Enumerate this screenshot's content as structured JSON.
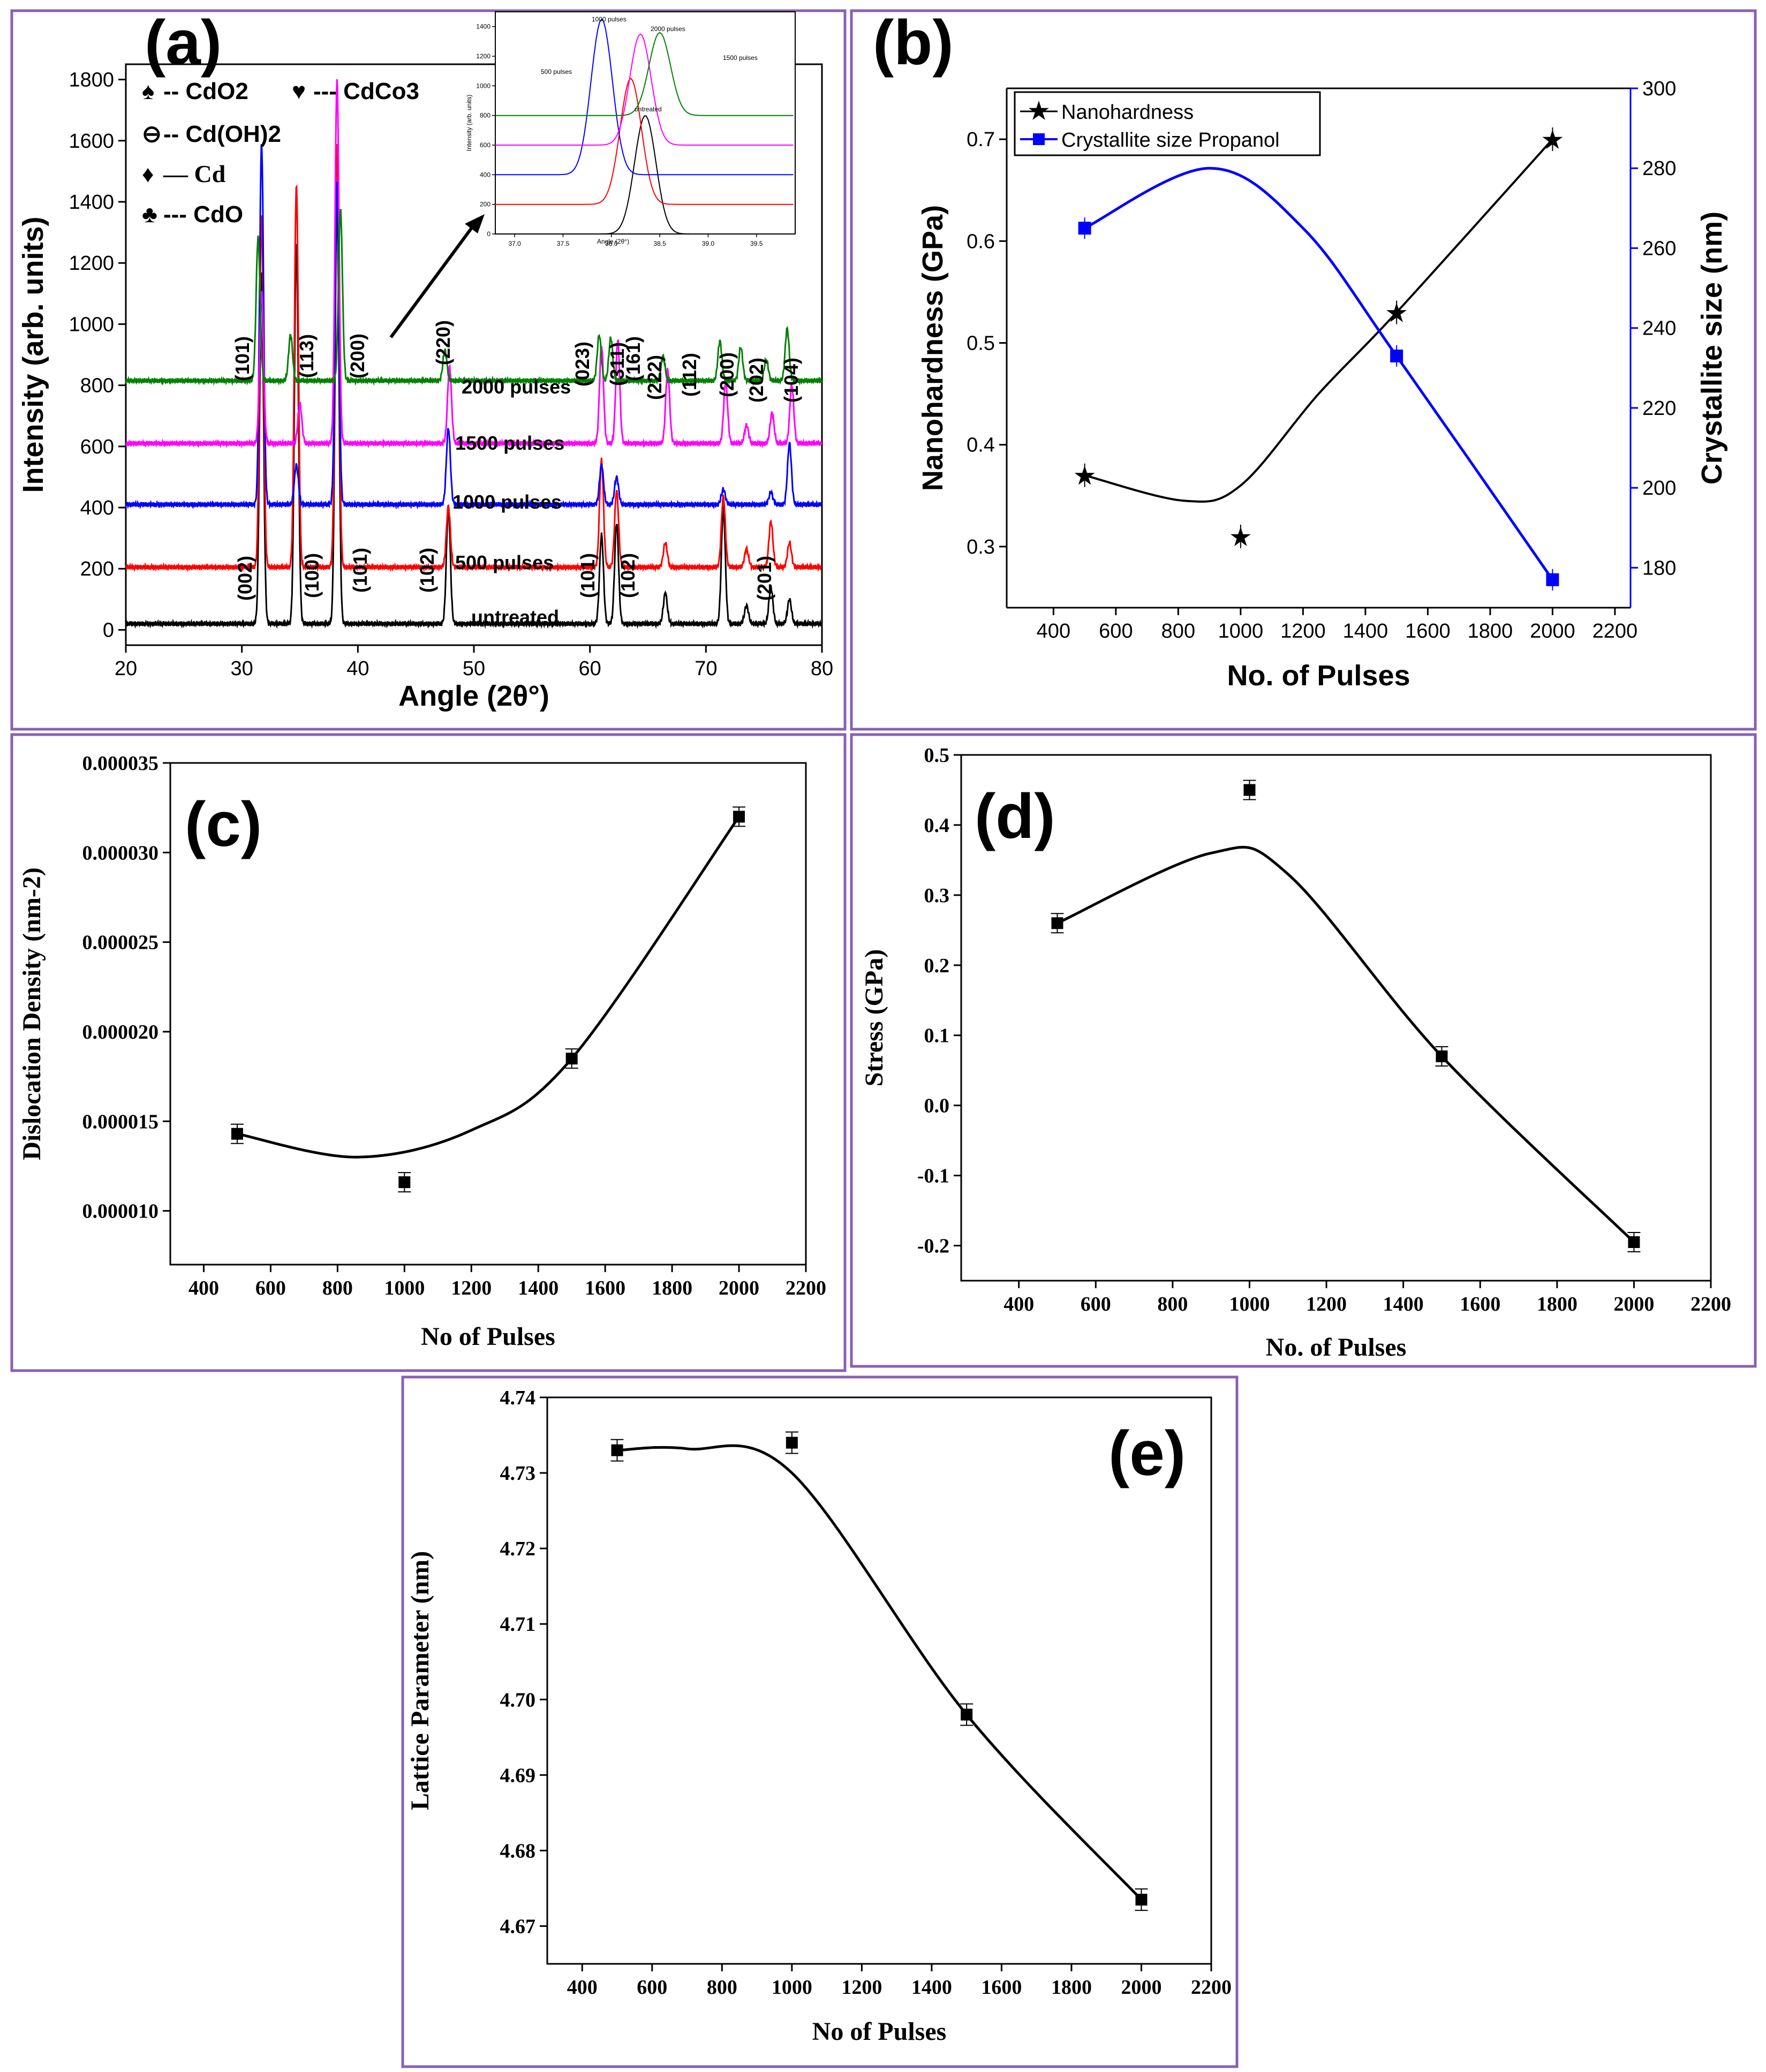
{
  "chart_data": [
    {
      "id": "a",
      "type": "line",
      "panel_label": "(a)",
      "xlabel": "Angle (2θ°)",
      "ylabel": "Intensity (arb. units)",
      "xlim": [
        20,
        80
      ],
      "ylim": [
        -50,
        1850
      ],
      "xticks": [
        "20",
        "30",
        "40",
        "50",
        "60",
        "70",
        "80"
      ],
      "yticks": [
        "0",
        "200",
        "400",
        "600",
        "800",
        "1000",
        "1200",
        "1400",
        "1600",
        "1800"
      ],
      "legend": [
        {
          "symbol": "♠",
          "label": "-- CdO2"
        },
        {
          "symbol": "♥",
          "label": "--- CdCo3"
        },
        {
          "symbol": "⊖",
          "label": "-- Cd(OH)2"
        },
        {
          "symbol": "♦",
          "label": "— Cd"
        },
        {
          "symbol": "♣",
          "label": "--- CdO"
        }
      ],
      "series": [
        {
          "name": "untreated",
          "color": "#000000",
          "baseline": 20,
          "peaks": [
            [
              31.7,
              1150
            ],
            [
              34.7,
              1250
            ],
            [
              38.2,
              1390
            ],
            [
              47.8,
              380
            ],
            [
              61.0,
              290
            ],
            [
              62.3,
              330
            ],
            [
              66.5,
              100
            ],
            [
              71.5,
              380
            ],
            [
              73.5,
              60
            ],
            [
              75.6,
              120
            ],
            [
              77.2,
              80
            ]
          ]
        },
        {
          "name": "500 pulses",
          "color": "#ff0000",
          "baseline": 205,
          "peaks": [
            [
              31.7,
              1150
            ],
            [
              34.7,
              1250
            ],
            [
              38.2,
              1390
            ],
            [
              47.8,
              200
            ],
            [
              61.0,
              350
            ],
            [
              62.3,
              250
            ],
            [
              66.5,
              80
            ],
            [
              71.5,
              230
            ],
            [
              73.5,
              60
            ],
            [
              75.6,
              150
            ],
            [
              77.2,
              80
            ]
          ]
        },
        {
          "name": "1000 pulses",
          "color": "#0000ff",
          "baseline": 410,
          "peaks": [
            [
              31.7,
              1180
            ],
            [
              34.7,
              130
            ],
            [
              38.2,
              1060
            ],
            [
              47.8,
              250
            ],
            [
              61.0,
              130
            ],
            [
              62.3,
              90
            ],
            [
              71.5,
              50
            ],
            [
              75.6,
              40
            ],
            [
              77.2,
              200
            ]
          ]
        },
        {
          "name": "1500 pulses",
          "color": "#ff00ff",
          "baseline": 610,
          "peaks": [
            [
              31.7,
              500
            ],
            [
              35.0,
              130
            ],
            [
              38.2,
              1190
            ],
            [
              47.9,
              250
            ],
            [
              61.0,
              320
            ],
            [
              62.4,
              340
            ],
            [
              66.7,
              240
            ],
            [
              71.7,
              200
            ],
            [
              73.5,
              60
            ],
            [
              75.7,
              100
            ],
            [
              77.4,
              190
            ]
          ]
        },
        {
          "name": "2000 pulses",
          "color": "#008000",
          "baseline": 815,
          "peaks": [
            [
              31.4,
              470
            ],
            [
              34.2,
              150
            ],
            [
              38.5,
              560
            ],
            [
              47.5,
              100
            ],
            [
              60.8,
              150
            ],
            [
              61.8,
              140
            ],
            [
              66.3,
              80
            ],
            [
              71.2,
              130
            ],
            [
              73.0,
              110
            ],
            [
              75.2,
              70
            ],
            [
              77.0,
              170
            ]
          ]
        }
      ],
      "curve_labels": [
        "2000 pulses",
        "1500 pulses",
        "1000 pulses",
        "500 pulses",
        "untreated"
      ],
      "peak_labels_top": [
        "(101)",
        "(113)",
        "(200)",
        "(220)",
        "(023)",
        "(161)",
        "(311)",
        "(222)",
        "(112)",
        "(200)",
        "(202)",
        "(104)"
      ],
      "peak_labels_bottom": [
        "(002)",
        "(100)",
        "(101)",
        "(102)",
        "(101)",
        "(102)",
        "(201)"
      ],
      "inset": {
        "ylabel": "Intensity (arb. units)",
        "xlabel": "Angle (2θ°)",
        "xticks": [
          "37.0",
          "37.5",
          "38.0",
          "38.5",
          "39.0",
          "39.5"
        ],
        "yticks": [
          "0",
          "200",
          "400",
          "600",
          "800",
          "1000",
          "1200",
          "1400"
        ],
        "labels": [
          "1000 pulses",
          "2000 pulses",
          "1500 pulses",
          "500 pulses",
          "untreated"
        ]
      }
    },
    {
      "id": "b",
      "type": "line",
      "panel_label": "(b)",
      "xlabel": "No. of Pulses",
      "ylabel": "Nanohardness (GPa)",
      "y2label": "Crystallite size (nm)",
      "xlim": [
        250,
        2250
      ],
      "ylim": [
        0.24,
        0.75
      ],
      "y2lim": [
        170,
        300
      ],
      "xticks": [
        "400",
        "600",
        "800",
        "1000",
        "1200",
        "1400",
        "1600",
        "1800",
        "2000",
        "2200"
      ],
      "yticks": [
        "0.3",
        "0.4",
        "0.5",
        "0.6",
        "0.7"
      ],
      "y2ticks": [
        "180",
        "200",
        "220",
        "240",
        "260",
        "280",
        "300"
      ],
      "series": [
        {
          "name": "Nanohardness",
          "axis": "left",
          "color": "#000000",
          "x": [
            500,
            1000,
            1500,
            2000
          ],
          "y": [
            0.37,
            0.31,
            0.53,
            0.7
          ]
        },
        {
          "name": "Crystallite size Propanol",
          "axis": "right",
          "color": "#0000ff",
          "x": [
            500,
            1500,
            2000
          ],
          "y": [
            265,
            233,
            177
          ]
        }
      ]
    },
    {
      "id": "c",
      "type": "scatter",
      "panel_label": "(c)",
      "xlabel": "No of Pulses",
      "ylabel": "Dislocation Density (nm-2)",
      "xlim": [
        300,
        2200
      ],
      "ylim": [
        7e-06,
        3.5e-05
      ],
      "xticks": [
        "400",
        "600",
        "800",
        "1000",
        "1200",
        "1400",
        "1600",
        "1800",
        "2000",
        "2200"
      ],
      "yticks": [
        "0.000010",
        "0.000015",
        "0.000020",
        "0.000025",
        "0.000030",
        "0.000035"
      ],
      "x": [
        500,
        1000,
        1500,
        2000
      ],
      "y": [
        1.43e-05,
        1.16e-05,
        1.85e-05,
        3.2e-05
      ]
    },
    {
      "id": "d",
      "type": "scatter",
      "panel_label": "(d)",
      "xlabel": "No. of Pulses",
      "ylabel": "Stress (GPa)",
      "xlim": [
        250,
        2200
      ],
      "ylim": [
        -0.25,
        0.5
      ],
      "xticks": [
        "400",
        "600",
        "800",
        "1000",
        "1200",
        "1400",
        "1600",
        "1800",
        "2000",
        "2200"
      ],
      "yticks": [
        "-0.2",
        "-0.1",
        "0.0",
        "0.1",
        "0.2",
        "0.3",
        "0.4",
        "0.5"
      ],
      "x": [
        500,
        1000,
        1500,
        2000
      ],
      "y": [
        0.26,
        0.45,
        0.07,
        -0.195
      ]
    },
    {
      "id": "e",
      "type": "scatter",
      "panel_label": "(e)",
      "xlabel": "No of Pulses",
      "ylabel": "Lattice Parameter (nm)",
      "xlim": [
        300,
        2200
      ],
      "ylim": [
        4.665,
        4.74
      ],
      "xticks": [
        "400",
        "600",
        "800",
        "1000",
        "1200",
        "1400",
        "1600",
        "1800",
        "2000",
        "2200"
      ],
      "yticks": [
        "4.67",
        "4.68",
        "4.69",
        "4.70",
        "4.71",
        "4.72",
        "4.73",
        "4.74"
      ],
      "x": [
        500,
        1000,
        1500,
        2000
      ],
      "y": [
        4.733,
        4.734,
        4.698,
        4.6735
      ]
    }
  ]
}
